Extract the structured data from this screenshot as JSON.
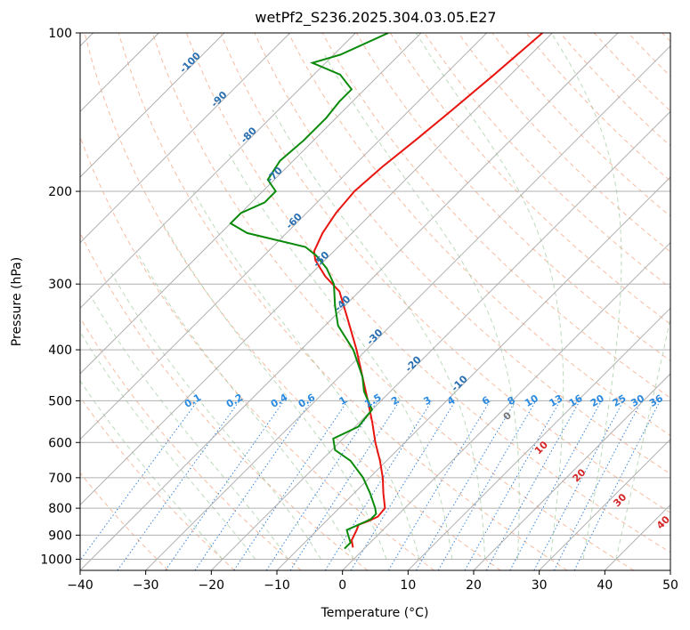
{
  "chart_data": {
    "type": "line",
    "chart_kind": "skew-T log-P sounding",
    "title": "wetPf2_S236.2025.304.03.05.E27",
    "xlabel": "Temperature (°C)",
    "ylabel": "Pressure (hPa)",
    "xlim": [
      -40,
      50
    ],
    "ylim_hpa": [
      1050,
      100
    ],
    "x_ticks": [
      -40,
      -30,
      -20,
      -10,
      0,
      10,
      20,
      30,
      40,
      50
    ],
    "x_tick_labels": [
      "−40",
      "−30",
      "−20",
      "−10",
      "0",
      "10",
      "20",
      "30",
      "40",
      "50"
    ],
    "y_ticks": [
      100,
      200,
      300,
      400,
      500,
      600,
      700,
      800,
      900,
      1000
    ],
    "y_tick_labels": [
      "100",
      "200",
      "300",
      "400",
      "500",
      "600",
      "700",
      "800",
      "900",
      "1000"
    ],
    "series": [
      {
        "name": "Temperature",
        "color": "#e8140f",
        "points": [
          {
            "p": 950,
            "t": -1.9
          },
          {
            "p": 920,
            "t": -3.2
          },
          {
            "p": 880,
            "t": -4.0
          },
          {
            "p": 860,
            "t": -4.5
          },
          {
            "p": 845,
            "t": -3.5
          },
          {
            "p": 830,
            "t": -2.8
          },
          {
            "p": 800,
            "t": -3.0
          },
          {
            "p": 750,
            "t": -5.5
          },
          {
            "p": 700,
            "t": -8.0
          },
          {
            "p": 650,
            "t": -11.0
          },
          {
            "p": 600,
            "t": -14.5
          },
          {
            "p": 550,
            "t": -18.0
          },
          {
            "p": 500,
            "t": -22.0
          },
          {
            "p": 450,
            "t": -26.5
          },
          {
            "p": 400,
            "t": -31.5
          },
          {
            "p": 350,
            "t": -37.5
          },
          {
            "p": 310,
            "t": -43.0
          },
          {
            "p": 290,
            "t": -47.5
          },
          {
            "p": 270,
            "t": -51.5
          },
          {
            "p": 260,
            "t": -53.0
          },
          {
            "p": 240,
            "t": -54.5
          },
          {
            "p": 220,
            "t": -55.5
          },
          {
            "p": 200,
            "t": -56.0
          },
          {
            "p": 180,
            "t": -55.5
          },
          {
            "p": 160,
            "t": -54.5
          },
          {
            "p": 140,
            "t": -53.5
          },
          {
            "p": 120,
            "t": -52.5
          },
          {
            "p": 100,
            "t": -51.5
          }
        ]
      },
      {
        "name": "Dewpoint",
        "color": "#0a8a0a",
        "points": [
          {
            "p": 955,
            "t": -3.0
          },
          {
            "p": 930,
            "t": -3.0
          },
          {
            "p": 900,
            "t": -4.5
          },
          {
            "p": 880,
            "t": -5.5
          },
          {
            "p": 860,
            "t": -4.5
          },
          {
            "p": 840,
            "t": -3.5
          },
          {
            "p": 820,
            "t": -3.5
          },
          {
            "p": 800,
            "t": -4.5
          },
          {
            "p": 750,
            "t": -7.5
          },
          {
            "p": 700,
            "t": -11.0
          },
          {
            "p": 650,
            "t": -15.5
          },
          {
            "p": 620,
            "t": -19.5
          },
          {
            "p": 590,
            "t": -21.5
          },
          {
            "p": 560,
            "t": -19.5
          },
          {
            "p": 520,
            "t": -20.0
          },
          {
            "p": 480,
            "t": -24.0
          },
          {
            "p": 450,
            "t": -26.5
          },
          {
            "p": 400,
            "t": -32.0
          },
          {
            "p": 360,
            "t": -38.0
          },
          {
            "p": 330,
            "t": -41.5
          },
          {
            "p": 300,
            "t": -45.0
          },
          {
            "p": 280,
            "t": -48.5
          },
          {
            "p": 265,
            "t": -52.0
          },
          {
            "p": 255,
            "t": -55.0
          },
          {
            "p": 240,
            "t": -66.0
          },
          {
            "p": 230,
            "t": -70.0
          },
          {
            "p": 220,
            "t": -70.0
          },
          {
            "p": 210,
            "t": -68.0
          },
          {
            "p": 200,
            "t": -68.0
          },
          {
            "p": 190,
            "t": -71.0
          },
          {
            "p": 175,
            "t": -72.0
          },
          {
            "p": 160,
            "t": -71.5
          },
          {
            "p": 145,
            "t": -71.5
          },
          {
            "p": 135,
            "t": -72.0
          },
          {
            "p": 128,
            "t": -72.0
          },
          {
            "p": 120,
            "t": -76.0
          },
          {
            "p": 114,
            "t": -82.0
          },
          {
            "p": 110,
            "t": -79.0
          },
          {
            "p": 100,
            "t": -75.0
          }
        ]
      }
    ],
    "isotherm_labels": [
      "-100",
      "-90",
      "-80",
      "-70",
      "-60",
      "-50",
      "-40",
      "-30",
      "-20",
      "-10"
    ],
    "mixing_ratio_labels": [
      "0.1",
      "0.2",
      "0.4",
      "0.6",
      "1",
      "1.5",
      "2",
      "3",
      "4",
      "6",
      "8",
      "10",
      "13",
      "16",
      "20",
      "25",
      "30",
      "36"
    ],
    "moist_adiabat_labels": [
      "0",
      "10",
      "20",
      "30",
      "40"
    ]
  }
}
